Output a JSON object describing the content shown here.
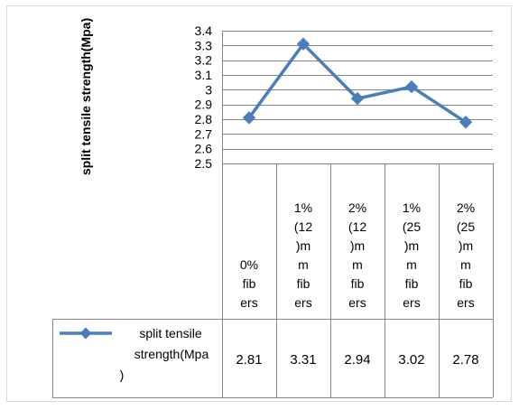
{
  "chart_data": {
    "type": "line",
    "ylabel": "split tensile strength(Mpa)",
    "ylim": [
      2.5,
      3.4
    ],
    "ytick_step": 0.1,
    "ytick_labels": [
      "2.5",
      "2.6",
      "2.7",
      "2.8",
      "2.9",
      "3",
      "3.1",
      "3.2",
      "3.3",
      "3.4"
    ],
    "grid": true,
    "legend_position": "bottom-left (data table)",
    "categories": [
      "0% fibers",
      "1% (12)mm fibers",
      "2% (12)mm fibers",
      "1% (25)mm fibers",
      "2% (25)mm fibers"
    ],
    "category_lines": [
      [
        "0%",
        "fib",
        "ers"
      ],
      [
        "1%",
        "(12",
        ")m",
        "m",
        "fib",
        "ers"
      ],
      [
        "2%",
        "(12",
        ")m",
        "m",
        "fib",
        "ers"
      ],
      [
        "1%",
        "(25",
        ")m",
        "m",
        "fib",
        "ers"
      ],
      [
        "2%",
        "(25",
        ")m",
        "m",
        "fib",
        "ers"
      ]
    ],
    "series": [
      {
        "name": "split tensile strength(Mpa)",
        "name_lines": [
          "split tensile",
          "strength(Mpa",
          ")"
        ],
        "values": [
          2.81,
          3.31,
          2.94,
          3.02,
          2.78
        ],
        "value_labels": [
          "2.81",
          "3.31",
          "2.94",
          "3.02",
          "2.78"
        ],
        "color": "#4a7ebb"
      }
    ]
  },
  "colors": {
    "grid": "#868686",
    "series": "#4a7ebb"
  }
}
